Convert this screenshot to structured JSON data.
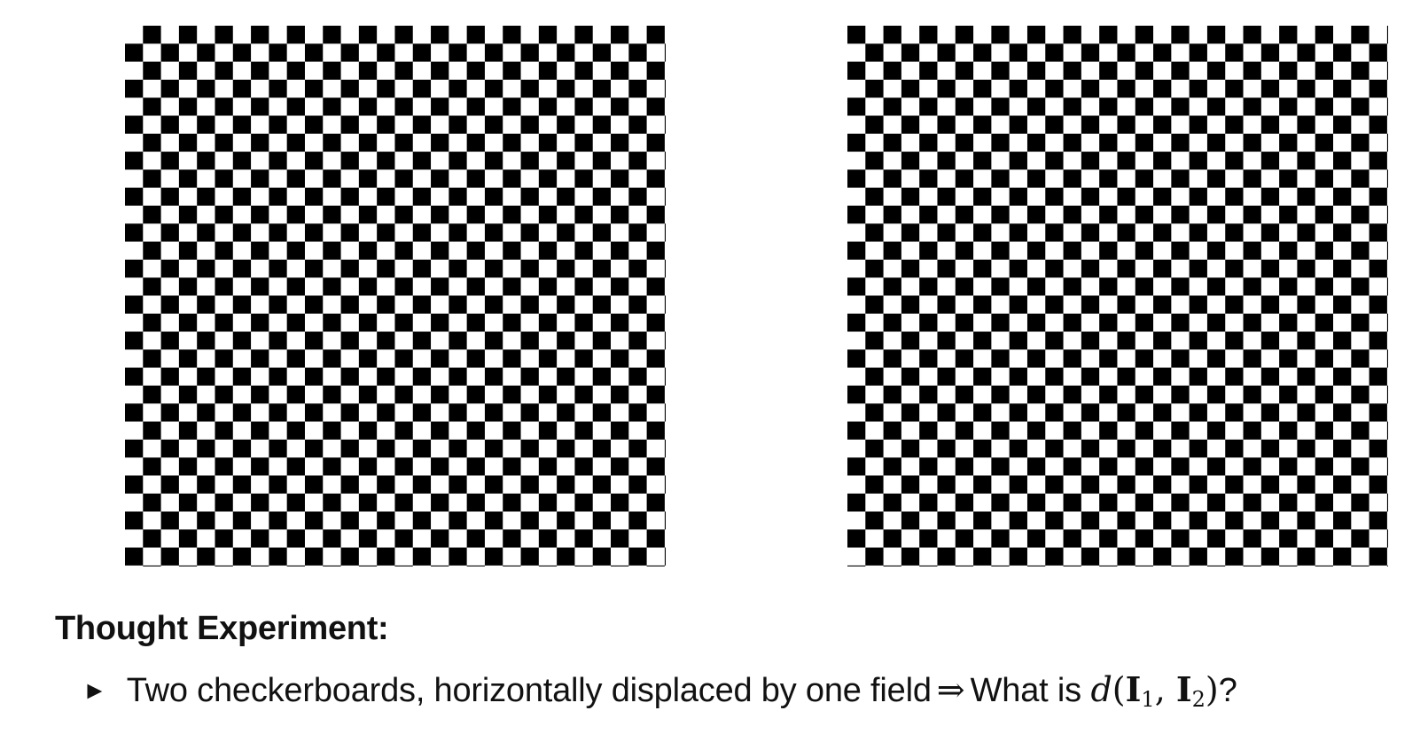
{
  "boards": {
    "left_label": "",
    "right_label": ""
  },
  "section": {
    "heading": "Thought Experiment:",
    "bullet_marker": "►",
    "bullet_text": "Two checkerboards, horizontally displaced by one field",
    "arrow": "⇒",
    "question_prefix": "What is",
    "math_d": "d",
    "math_I": "I",
    "sub1": "1",
    "sub2": "2",
    "question_suffix": "?"
  }
}
